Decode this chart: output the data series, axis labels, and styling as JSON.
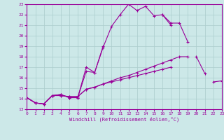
{
  "xlabel": "Windchill (Refroidissement éolien,°C)",
  "xlim": [
    0,
    23
  ],
  "ylim": [
    13,
    23
  ],
  "xticks": [
    0,
    1,
    2,
    3,
    4,
    5,
    6,
    7,
    8,
    9,
    10,
    11,
    12,
    13,
    14,
    15,
    16,
    17,
    18,
    19,
    20,
    21,
    22,
    23
  ],
  "yticks": [
    13,
    14,
    15,
    16,
    17,
    18,
    19,
    20,
    21,
    22,
    23
  ],
  "background_color": "#cce8e8",
  "grid_color": "#aacccc",
  "line_color": "#990099",
  "curves": [
    [
      14.1,
      13.6,
      13.5,
      14.3,
      14.4,
      14.1,
      14.1,
      16.6,
      16.5,
      18.9,
      20.9,
      22.0,
      23.0,
      22.4,
      22.8,
      21.9,
      22.0,
      21.2,
      21.2,
      19.4,
      null,
      null,
      null,
      null
    ],
    [
      14.1,
      13.6,
      13.5,
      14.3,
      14.4,
      14.1,
      14.1,
      17.0,
      16.5,
      19.0,
      null,
      null,
      null,
      null,
      null,
      null,
      22.0,
      21.0,
      null,
      null,
      18.0,
      16.4,
      null,
      null
    ],
    [
      14.1,
      13.6,
      13.5,
      14.3,
      14.3,
      14.2,
      14.2,
      14.9,
      15.1,
      15.4,
      15.7,
      16.0,
      16.2,
      16.5,
      16.8,
      17.1,
      17.4,
      17.7,
      18.0,
      18.0,
      null,
      null,
      null,
      null
    ],
    [
      14.1,
      13.6,
      13.5,
      14.3,
      14.3,
      14.2,
      14.2,
      14.9,
      15.1,
      15.4,
      15.6,
      15.8,
      16.0,
      16.2,
      16.4,
      16.6,
      16.8,
      17.0,
      null,
      null,
      null,
      null,
      15.6,
      15.7
    ]
  ]
}
